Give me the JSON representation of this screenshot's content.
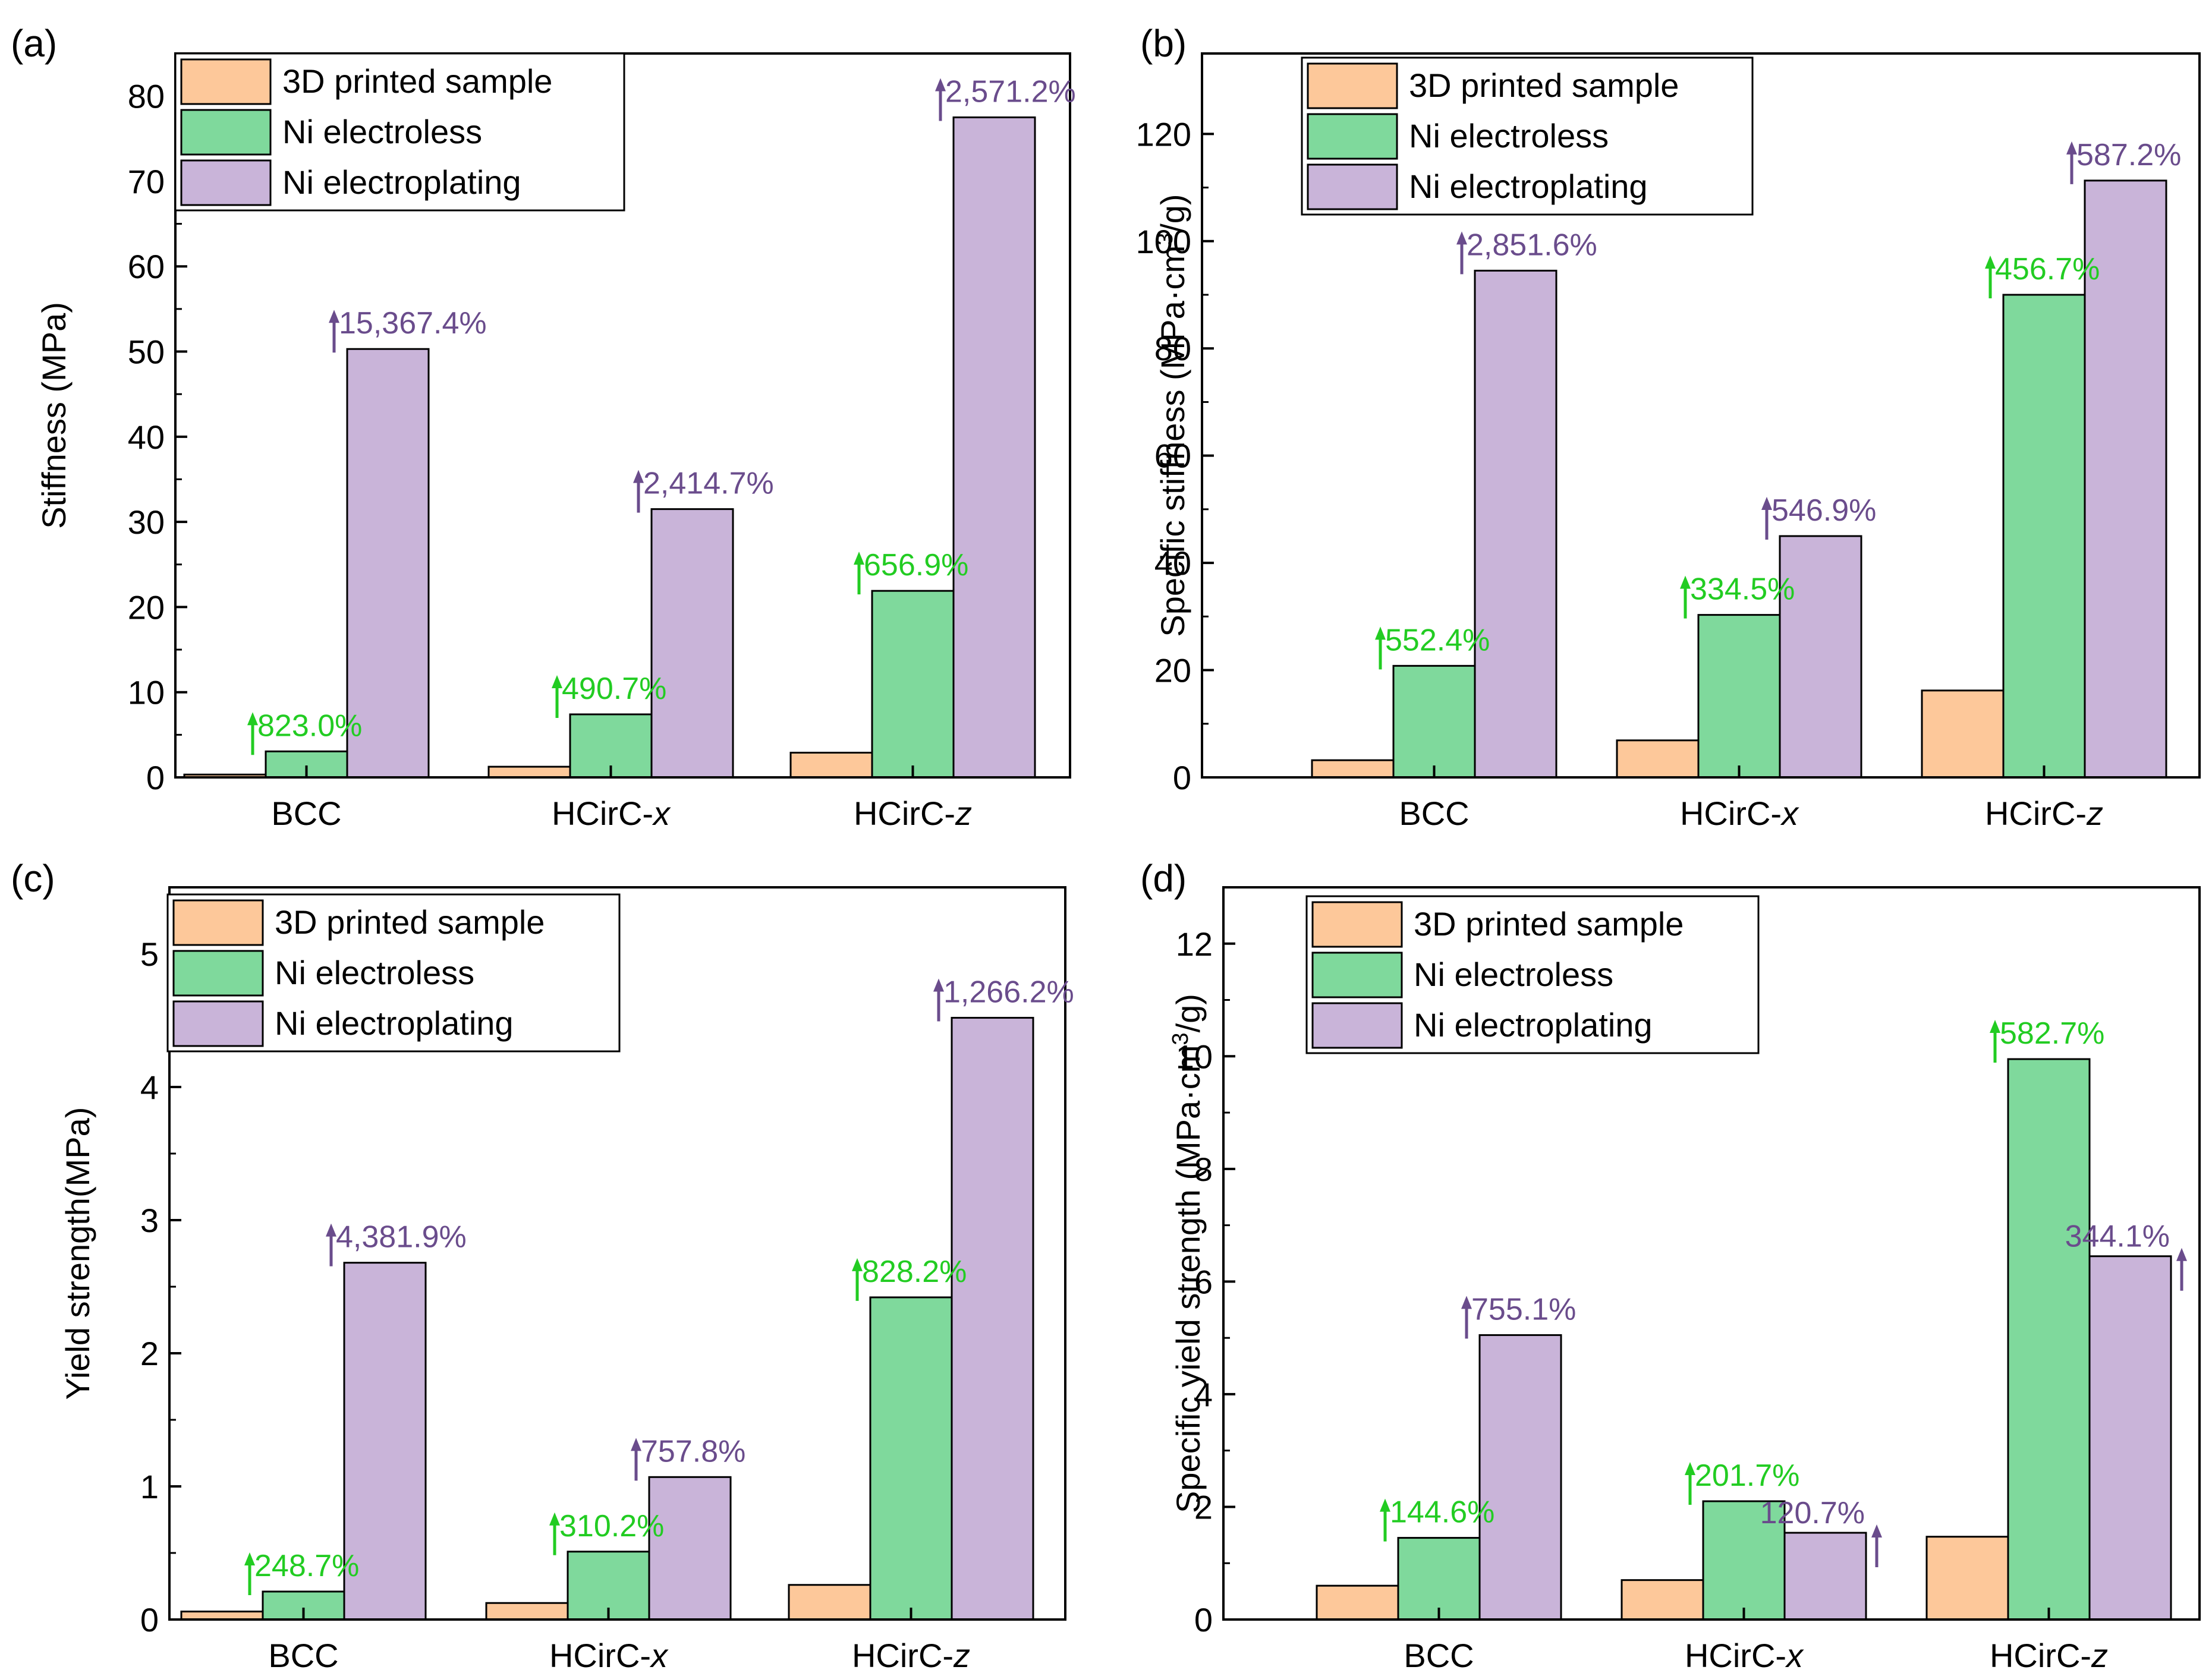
{
  "colors": {
    "printed": "#FDC89A",
    "electroless": "#7FD99C",
    "electroplating": "#C9B4D9",
    "electroless_label": "#22CC22",
    "electroplating_label": "#6A4C8C",
    "axis": "#000000"
  },
  "legend_labels": [
    "3D printed sample",
    "Ni electroless",
    "Ni electroplating"
  ],
  "chart_data": [
    {
      "id": "a",
      "type": "bar",
      "panel_label": "(a)",
      "ylabel": "Stiffness (MPa)",
      "ylabel_super": "",
      "ylabel_tail": "",
      "ylim": [
        0,
        85
      ],
      "yticks": [
        0,
        10,
        20,
        30,
        40,
        50,
        60,
        70,
        80
      ],
      "yticks_text": [
        "0",
        "10",
        "20",
        "30",
        "40",
        "50",
        "60",
        "70",
        "80"
      ],
      "categories": [
        "BCC",
        "HCirC-x",
        "HCirC-z"
      ],
      "category_base": [
        "BCC",
        "HCirC-",
        "HCirC-"
      ],
      "category_italic": [
        "",
        "x",
        "z"
      ],
      "legend": "top-left",
      "series": [
        {
          "name": "3D printed sample",
          "values": [
            0.33,
            1.25,
            2.9
          ]
        },
        {
          "name": "Ni electroless",
          "values": [
            3.05,
            7.4,
            21.9
          ]
        },
        {
          "name": "Ni electroplating",
          "values": [
            50.3,
            31.5,
            77.5
          ]
        }
      ],
      "annotations": [
        {
          "series": 1,
          "category": 0,
          "text": "823.0%"
        },
        {
          "series": 2,
          "category": 0,
          "text": "15,367.4%"
        },
        {
          "series": 1,
          "category": 1,
          "text": "490.7%"
        },
        {
          "series": 2,
          "category": 1,
          "text": "2,414.7%"
        },
        {
          "series": 1,
          "category": 2,
          "text": "656.9%"
        },
        {
          "series": 2,
          "category": 2,
          "text": "2,571.2%"
        }
      ]
    },
    {
      "id": "b",
      "type": "bar",
      "panel_label": "(b)",
      "ylabel": "Specific stiffness (MPa·cm",
      "ylabel_super": "3",
      "ylabel_tail": "/g)",
      "ylim": [
        0,
        135
      ],
      "yticks": [
        0,
        20,
        40,
        60,
        80,
        100,
        120
      ],
      "yticks_text": [
        "0",
        "20",
        "40",
        "60",
        "80",
        "100",
        "120"
      ],
      "categories": [
        "BCC",
        "HCirC-x",
        "HCirC-z"
      ],
      "category_base": [
        "BCC",
        "HCirC-",
        "HCirC-"
      ],
      "category_italic": [
        "",
        "x",
        "z"
      ],
      "legend": "top-left",
      "series": [
        {
          "name": "3D printed sample",
          "values": [
            3.2,
            6.9,
            16.2
          ]
        },
        {
          "name": "Ni electroless",
          "values": [
            20.8,
            30.3,
            90.0
          ]
        },
        {
          "name": "Ni electroplating",
          "values": [
            94.5,
            45.0,
            111.3
          ]
        }
      ],
      "annotations": [
        {
          "series": 1,
          "category": 0,
          "text": "552.4%"
        },
        {
          "series": 2,
          "category": 0,
          "text": "2,851.6%"
        },
        {
          "series": 1,
          "category": 1,
          "text": "334.5%"
        },
        {
          "series": 2,
          "category": 1,
          "text": "546.9%"
        },
        {
          "series": 1,
          "category": 2,
          "text": "456.7%"
        },
        {
          "series": 2,
          "category": 2,
          "text": "587.2%"
        }
      ]
    },
    {
      "id": "c",
      "type": "bar",
      "panel_label": "(c)",
      "ylabel": "Yield strength(MPa)",
      "ylabel_super": "",
      "ylabel_tail": "",
      "ylim": [
        0,
        5.5
      ],
      "yticks": [
        0,
        1,
        2,
        3,
        4,
        5
      ],
      "yticks_text": [
        "0",
        "1",
        "2",
        "3",
        "4",
        "5"
      ],
      "categories": [
        "BCC",
        "HCirC-x",
        "HCirC-z"
      ],
      "category_base": [
        "BCC",
        "HCirC-",
        "HCirC-"
      ],
      "category_italic": [
        "",
        "x",
        "z"
      ],
      "legend": "top-left",
      "series": [
        {
          "name": "3D printed sample",
          "values": [
            0.06,
            0.124,
            0.26
          ]
        },
        {
          "name": "Ni electroless",
          "values": [
            0.21,
            0.51,
            2.42
          ]
        },
        {
          "name": "Ni electroplating",
          "values": [
            2.68,
            1.07,
            4.52
          ]
        }
      ],
      "annotations": [
        {
          "series": 1,
          "category": 0,
          "text": "248.7%"
        },
        {
          "series": 2,
          "category": 0,
          "text": "4,381.9%"
        },
        {
          "series": 1,
          "category": 1,
          "text": "310.2%"
        },
        {
          "series": 2,
          "category": 1,
          "text": "757.8%"
        },
        {
          "series": 1,
          "category": 2,
          "text": "828.2%"
        },
        {
          "series": 2,
          "category": 2,
          "text": "1,266.2%"
        }
      ]
    },
    {
      "id": "d",
      "type": "bar",
      "panel_label": "(d)",
      "ylabel": "Specific yield strength (MPa·cm",
      "ylabel_super": "3",
      "ylabel_tail": "/g)",
      "ylim": [
        0,
        13
      ],
      "yticks": [
        0,
        2,
        4,
        6,
        8,
        10,
        12
      ],
      "yticks_text": [
        "0",
        "2",
        "4",
        "6",
        "8",
        "10",
        "12"
      ],
      "categories": [
        "BCC",
        "HCirC-x",
        "HCirC-z"
      ],
      "category_base": [
        "BCC",
        "HCirC-",
        "HCirC-"
      ],
      "category_italic": [
        "",
        "x",
        "z"
      ],
      "legend": "top-left",
      "series": [
        {
          "name": "3D printed sample",
          "values": [
            0.6,
            0.7,
            1.47
          ]
        },
        {
          "name": "Ni electroless",
          "values": [
            1.45,
            2.1,
            9.95
          ]
        },
        {
          "name": "Ni electroplating",
          "values": [
            5.05,
            1.54,
            6.45
          ]
        }
      ],
      "annotations": [
        {
          "series": 1,
          "category": 0,
          "text": "144.6%"
        },
        {
          "series": 2,
          "category": 0,
          "text": "755.1%"
        },
        {
          "series": 1,
          "category": 1,
          "text": "201.7%"
        },
        {
          "series": 2,
          "category": 1,
          "text": "120.7%",
          "placement": "left"
        },
        {
          "series": 1,
          "category": 2,
          "text": "582.7%"
        },
        {
          "series": 2,
          "category": 2,
          "text": "344.1%",
          "placement": "left"
        }
      ]
    }
  ]
}
